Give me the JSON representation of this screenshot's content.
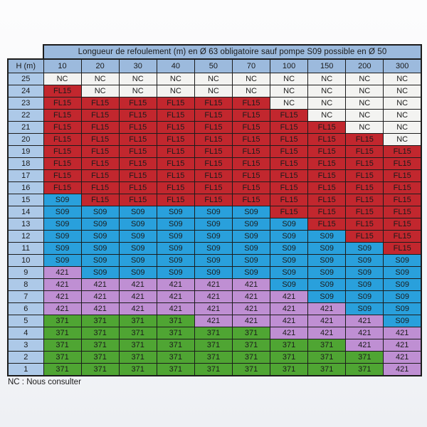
{
  "table": {
    "title": "Longueur de refoulement (m) en Ø 63 obligatoire sauf pompe S09 possible en Ø 50",
    "corner_label": "H (m)",
    "columns": [
      "10",
      "20",
      "30",
      "40",
      "50",
      "70",
      "100",
      "150",
      "200",
      "300"
    ],
    "rows": [
      {
        "h": "25",
        "cells": [
          "NC",
          "NC",
          "NC",
          "NC",
          "NC",
          "NC",
          "NC",
          "NC",
          "NC",
          "NC"
        ]
      },
      {
        "h": "24",
        "cells": [
          "FL15",
          "NC",
          "NC",
          "NC",
          "NC",
          "NC",
          "NC",
          "NC",
          "NC",
          "NC"
        ]
      },
      {
        "h": "23",
        "cells": [
          "FL15",
          "FL15",
          "FL15",
          "FL15",
          "FL15",
          "FL15",
          "NC",
          "NC",
          "NC",
          "NC"
        ]
      },
      {
        "h": "22",
        "cells": [
          "FL15",
          "FL15",
          "FL15",
          "FL15",
          "FL15",
          "FL15",
          "FL15",
          "NC",
          "NC",
          "NC"
        ]
      },
      {
        "h": "21",
        "cells": [
          "FL15",
          "FL15",
          "FL15",
          "FL15",
          "FL15",
          "FL15",
          "FL15",
          "FL15",
          "NC",
          "NC"
        ]
      },
      {
        "h": "20",
        "cells": [
          "FL15",
          "FL15",
          "FL15",
          "FL15",
          "FL15",
          "FL15",
          "FL15",
          "FL15",
          "FL15",
          "NC"
        ]
      },
      {
        "h": "19",
        "cells": [
          "FL15",
          "FL15",
          "FL15",
          "FL15",
          "FL15",
          "FL15",
          "FL15",
          "FL15",
          "FL15",
          "FL15"
        ]
      },
      {
        "h": "18",
        "cells": [
          "FL15",
          "FL15",
          "FL15",
          "FL15",
          "FL15",
          "FL15",
          "FL15",
          "FL15",
          "FL15",
          "FL15"
        ]
      },
      {
        "h": "17",
        "cells": [
          "FL15",
          "FL15",
          "FL15",
          "FL15",
          "FL15",
          "FL15",
          "FL15",
          "FL15",
          "FL15",
          "FL15"
        ]
      },
      {
        "h": "16",
        "cells": [
          "FL15",
          "FL15",
          "FL15",
          "FL15",
          "FL15",
          "FL15",
          "FL15",
          "FL15",
          "FL15",
          "FL15"
        ]
      },
      {
        "h": "15",
        "cells": [
          "S09",
          "FL15",
          "FL15",
          "FL15",
          "FL15",
          "FL15",
          "FL15",
          "FL15",
          "FL15",
          "FL15"
        ]
      },
      {
        "h": "14",
        "cells": [
          "S09",
          "S09",
          "S09",
          "S09",
          "S09",
          "S09",
          "FL15",
          "FL15",
          "FL15",
          "FL15"
        ]
      },
      {
        "h": "13",
        "cells": [
          "S09",
          "S09",
          "S09",
          "S09",
          "S09",
          "S09",
          "S09",
          "FL15",
          "FL15",
          "FL15"
        ]
      },
      {
        "h": "12",
        "cells": [
          "S09",
          "S09",
          "S09",
          "S09",
          "S09",
          "S09",
          "S09",
          "S09",
          "FL15",
          "FL15"
        ]
      },
      {
        "h": "11",
        "cells": [
          "S09",
          "S09",
          "S09",
          "S09",
          "S09",
          "S09",
          "S09",
          "S09",
          "S09",
          "FL15"
        ]
      },
      {
        "h": "10",
        "cells": [
          "S09",
          "S09",
          "S09",
          "S09",
          "S09",
          "S09",
          "S09",
          "S09",
          "S09",
          "S09"
        ]
      },
      {
        "h": "9",
        "cells": [
          "421",
          "S09",
          "S09",
          "S09",
          "S09",
          "S09",
          "S09",
          "S09",
          "S09",
          "S09"
        ]
      },
      {
        "h": "8",
        "cells": [
          "421",
          "421",
          "421",
          "421",
          "421",
          "421",
          "S09",
          "S09",
          "S09",
          "S09"
        ]
      },
      {
        "h": "7",
        "cells": [
          "421",
          "421",
          "421",
          "421",
          "421",
          "421",
          "421",
          "S09",
          "S09",
          "S09"
        ]
      },
      {
        "h": "6",
        "cells": [
          "421",
          "421",
          "421",
          "421",
          "421",
          "421",
          "421",
          "421",
          "S09",
          "S09"
        ]
      },
      {
        "h": "5",
        "cells": [
          "371",
          "371",
          "371",
          "371",
          "421",
          "421",
          "421",
          "421",
          "421",
          "S09"
        ]
      },
      {
        "h": "4",
        "cells": [
          "371",
          "371",
          "371",
          "371",
          "371",
          "371",
          "421",
          "421",
          "421",
          "421"
        ]
      },
      {
        "h": "3",
        "cells": [
          "371",
          "371",
          "371",
          "371",
          "371",
          "371",
          "371",
          "371",
          "421",
          "421"
        ]
      },
      {
        "h": "2",
        "cells": [
          "371",
          "371",
          "371",
          "371",
          "371",
          "371",
          "371",
          "371",
          "371",
          "421"
        ]
      },
      {
        "h": "1",
        "cells": [
          "371",
          "371",
          "371",
          "371",
          "371",
          "371",
          "371",
          "371",
          "371",
          "421"
        ]
      }
    ],
    "value_colors": {
      "NC": "#f3f3f1",
      "FL15": "#c2272e",
      "S09": "#29a0dc",
      "421": "#bf8fd3",
      "371": "#4fa533"
    },
    "header_bg": "#9cbadd",
    "row_header_bg": "#adc9e8"
  },
  "footnote": "NC : Nous consulter"
}
